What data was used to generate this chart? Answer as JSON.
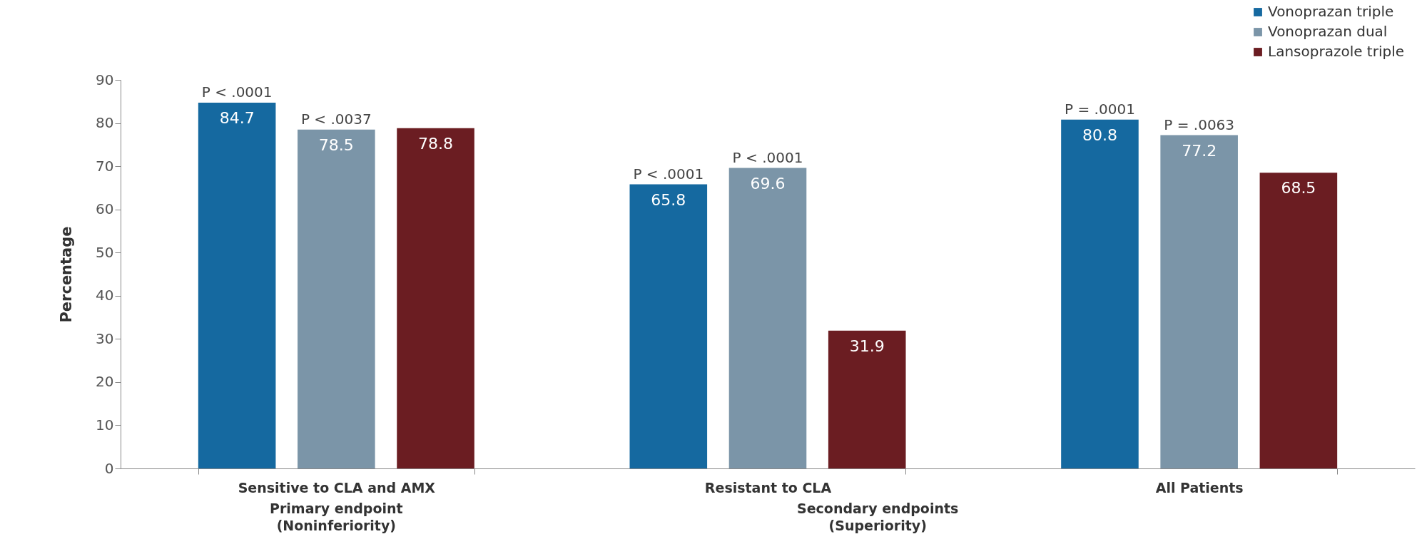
{
  "chart_data": {
    "type": "bar",
    "ylabel": "Percentage",
    "categories": [
      "Sensitive to CLA and AMX",
      "Resistant to CLA",
      "All Patients"
    ],
    "series": [
      {
        "name": "Vonoprazan triple",
        "color": "#1569a0",
        "values": [
          84.7,
          65.8,
          80.8
        ]
      },
      {
        "name": "Vonoprazan dual",
        "color": "#7b95a8",
        "values": [
          78.5,
          69.6,
          77.2
        ]
      },
      {
        "name": "Lansoprazole triple",
        "color": "#6b1d22",
        "values": [
          78.8,
          31.9,
          68.5
        ]
      }
    ],
    "ylim": [
      0,
      90
    ],
    "yticks": [
      0,
      10,
      20,
      30,
      40,
      50,
      60,
      70,
      80,
      90
    ],
    "data_labels": true,
    "legend": "top right",
    "annotations": [
      "P < .0001",
      "P < .0037",
      "P < .0001",
      "P < .0001",
      "P = .0001",
      "P = .0063",
      "Primary endpoint\n(Noninferiority)",
      "Secondary endpoints\n(Superiority)"
    ]
  }
}
